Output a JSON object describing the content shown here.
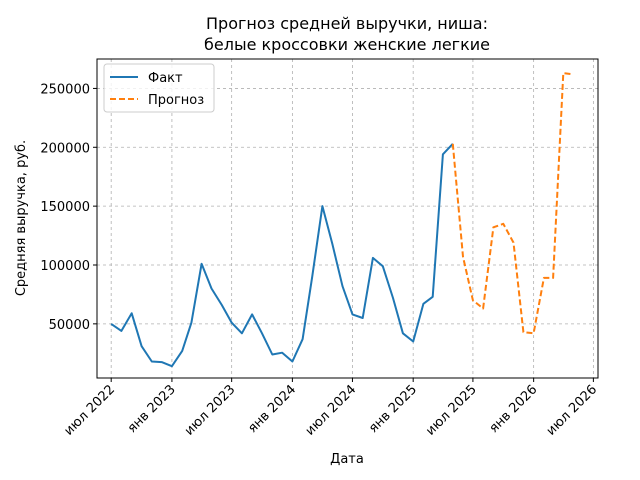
{
  "chart_data": {
    "type": "line",
    "title_lines": [
      "Прогноз средней выручки, ниша:",
      "белые кроссовки женские легкие"
    ],
    "xlabel": "Дата",
    "ylabel": "Средняя выручка, руб.",
    "xlim": [
      "2022-05-19",
      "2026-07-15"
    ],
    "ylim": [
      4000,
      275000
    ],
    "grid": true,
    "legend_position": "top-left",
    "x_ticks": [
      {
        "date": "2022-07-01",
        "label": "июл 2022"
      },
      {
        "date": "2023-01-01",
        "label": "янв 2023"
      },
      {
        "date": "2023-07-01",
        "label": "июл 2023"
      },
      {
        "date": "2024-01-01",
        "label": "янв 2024"
      },
      {
        "date": "2024-07-01",
        "label": "июл 2024"
      },
      {
        "date": "2025-01-01",
        "label": "янв 2025"
      },
      {
        "date": "2025-07-01",
        "label": "июл 2025"
      },
      {
        "date": "2026-01-01",
        "label": "янв 2026"
      },
      {
        "date": "2026-07-01",
        "label": "июл 2026"
      }
    ],
    "y_ticks": [
      {
        "value": 50000,
        "label": "50000"
      },
      {
        "value": 100000,
        "label": "100000"
      },
      {
        "value": 150000,
        "label": "150000"
      },
      {
        "value": 200000,
        "label": "200000"
      },
      {
        "value": 250000,
        "label": "250000"
      }
    ],
    "series": [
      {
        "name": "Факт",
        "color": "#1f77b4",
        "dash": "solid",
        "points": [
          [
            "2022-07-01",
            50000
          ],
          [
            "2022-08-01",
            44000
          ],
          [
            "2022-09-01",
            59000
          ],
          [
            "2022-10-01",
            31000
          ],
          [
            "2022-11-01",
            18000
          ],
          [
            "2022-12-01",
            17500
          ],
          [
            "2023-01-01",
            14000
          ],
          [
            "2023-02-01",
            27000
          ],
          [
            "2023-03-01",
            51000
          ],
          [
            "2023-04-01",
            101000
          ],
          [
            "2023-05-01",
            80000
          ],
          [
            "2023-06-01",
            66000
          ],
          [
            "2023-07-01",
            51000
          ],
          [
            "2023-08-01",
            42000
          ],
          [
            "2023-09-01",
            58000
          ],
          [
            "2023-10-01",
            42000
          ],
          [
            "2023-11-01",
            24000
          ],
          [
            "2023-12-01",
            25500
          ],
          [
            "2024-01-01",
            18000
          ],
          [
            "2024-02-01",
            37000
          ],
          [
            "2024-03-01",
            90000
          ],
          [
            "2024-04-01",
            150000
          ],
          [
            "2024-05-01",
            118000
          ],
          [
            "2024-06-01",
            82000
          ],
          [
            "2024-07-01",
            58000
          ],
          [
            "2024-08-01",
            55000
          ],
          [
            "2024-09-01",
            106000
          ],
          [
            "2024-10-01",
            99000
          ],
          [
            "2024-11-01",
            72000
          ],
          [
            "2024-12-01",
            42000
          ],
          [
            "2025-01-01",
            35000
          ],
          [
            "2025-02-01",
            67000
          ],
          [
            "2025-03-01",
            73000
          ],
          [
            "2025-04-01",
            194000
          ],
          [
            "2025-05-01",
            203000
          ]
        ]
      },
      {
        "name": "Прогноз",
        "color": "#ff7f0e",
        "dash": "dashed",
        "points": [
          [
            "2025-05-01",
            203000
          ],
          [
            "2025-06-01",
            107000
          ],
          [
            "2025-07-01",
            70000
          ],
          [
            "2025-08-01",
            63000
          ],
          [
            "2025-09-01",
            132000
          ],
          [
            "2025-10-01",
            135000
          ],
          [
            "2025-11-01",
            119000
          ],
          [
            "2025-12-01",
            43000
          ],
          [
            "2026-01-01",
            42000
          ],
          [
            "2026-02-01",
            89000
          ],
          [
            "2026-03-01",
            89000
          ],
          [
            "2026-04-01",
            263000
          ],
          [
            "2026-05-01",
            262000
          ]
        ]
      }
    ]
  }
}
